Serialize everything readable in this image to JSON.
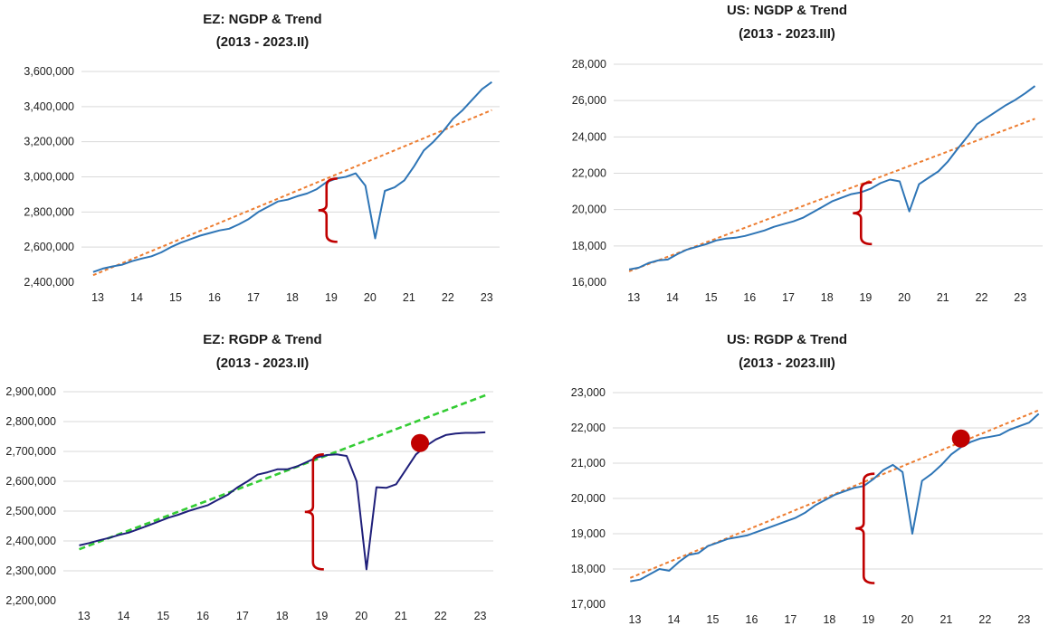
{
  "chart_data": [
    {
      "id": "ez-ngdp",
      "type": "line",
      "title": "EZ: NGDP & Trend",
      "subtitle": "(2013 - 2023.II)",
      "xlabel": "",
      "ylabel": "",
      "x_ticks": [
        "13",
        "14",
        "15",
        "16",
        "17",
        "18",
        "19",
        "20",
        "21",
        "22",
        "23"
      ],
      "y_ticks": [
        "2,400,000",
        "2,600,000",
        "2,800,000",
        "3,000,000",
        "3,200,000",
        "3,400,000",
        "3,600,000"
      ],
      "ylim": [
        2400000,
        3600000
      ],
      "grid": true,
      "series": [
        {
          "name": "NGDP",
          "color": "#2e75b6",
          "style": "solid",
          "x": [
            2013.0,
            2013.25,
            2013.5,
            2013.75,
            2014.0,
            2014.25,
            2014.5,
            2014.75,
            2015.0,
            2015.25,
            2015.5,
            2015.75,
            2016.0,
            2016.25,
            2016.5,
            2016.75,
            2017.0,
            2017.25,
            2017.5,
            2017.75,
            2018.0,
            2018.25,
            2018.5,
            2018.75,
            2019.0,
            2019.25,
            2019.5,
            2019.75,
            2020.0,
            2020.25,
            2020.5,
            2020.75,
            2021.0,
            2021.25,
            2021.5,
            2021.75,
            2022.0,
            2022.25,
            2022.5,
            2022.75,
            2023.0,
            2023.25
          ],
          "y": [
            2458000,
            2478000,
            2490000,
            2500000,
            2520000,
            2535000,
            2548000,
            2570000,
            2600000,
            2625000,
            2645000,
            2665000,
            2680000,
            2695000,
            2705000,
            2730000,
            2760000,
            2800000,
            2830000,
            2860000,
            2870000,
            2890000,
            2905000,
            2930000,
            2970000,
            2990000,
            3000000,
            3020000,
            2950000,
            2650000,
            2920000,
            2940000,
            2980000,
            3060000,
            3150000,
            3200000,
            3260000,
            3330000,
            3380000,
            3440000,
            3500000,
            3540000
          ]
        },
        {
          "name": "Trend",
          "color": "#ed7d31",
          "style": "dashed",
          "x": [
            2013.0,
            2023.25
          ],
          "y": [
            2440000,
            3380000
          ]
        }
      ],
      "annotations": [
        {
          "type": "brace",
          "x": 2019.0,
          "y_from": 2630000,
          "y_to": 2990000
        }
      ]
    },
    {
      "id": "us-ngdp",
      "type": "line",
      "title": "US: NGDP & Trend",
      "subtitle": "(2013 - 2023.III)",
      "xlabel": "",
      "ylabel": "",
      "x_ticks": [
        "13",
        "14",
        "15",
        "16",
        "17",
        "18",
        "19",
        "20",
        "21",
        "22",
        "23"
      ],
      "y_ticks": [
        "16,000",
        "18,000",
        "20,000",
        "22,000",
        "24,000",
        "26,000",
        "28,000"
      ],
      "ylim": [
        16000,
        28000
      ],
      "grid": true,
      "series": [
        {
          "name": "NGDP",
          "color": "#2e75b6",
          "style": "solid",
          "x": [
            2013.0,
            2013.25,
            2013.5,
            2013.75,
            2014.0,
            2014.25,
            2014.5,
            2014.75,
            2015.0,
            2015.25,
            2015.5,
            2015.75,
            2016.0,
            2016.25,
            2016.5,
            2016.75,
            2017.0,
            2017.25,
            2017.5,
            2017.75,
            2018.0,
            2018.25,
            2018.5,
            2018.75,
            2019.0,
            2019.25,
            2019.5,
            2019.75,
            2020.0,
            2020.25,
            2020.5,
            2020.75,
            2021.0,
            2021.25,
            2021.5,
            2021.75,
            2022.0,
            2022.25,
            2022.5,
            2022.75,
            2023.0,
            2023.25,
            2023.5
          ],
          "y": [
            16700,
            16800,
            17050,
            17200,
            17250,
            17550,
            17800,
            17950,
            18100,
            18300,
            18400,
            18450,
            18550,
            18700,
            18850,
            19050,
            19200,
            19350,
            19550,
            19850,
            20150,
            20450,
            20650,
            20850,
            20950,
            21150,
            21450,
            21650,
            21550,
            19900,
            21400,
            21750,
            22100,
            22650,
            23350,
            24000,
            24700,
            25050,
            25400,
            25750,
            26050,
            26400,
            26800
          ]
        },
        {
          "name": "Trend",
          "color": "#ed7d31",
          "style": "dashed",
          "x": [
            2013.0,
            2023.5
          ],
          "y": [
            16600,
            25000
          ]
        }
      ],
      "annotations": [
        {
          "type": "brace",
          "x": 2019.0,
          "y_from": 18100,
          "y_to": 21500
        }
      ]
    },
    {
      "id": "ez-rgdp",
      "type": "line",
      "title": "EZ: RGDP & Trend",
      "subtitle": "(2013 - 2023.II)",
      "xlabel": "",
      "ylabel": "",
      "x_ticks": [
        "13",
        "14",
        "15",
        "16",
        "17",
        "18",
        "19",
        "20",
        "21",
        "22",
        "23"
      ],
      "y_ticks": [
        "2,200,000",
        "2,300,000",
        "2,400,000",
        "2,500,000",
        "2,600,000",
        "2,700,000",
        "2,800,000",
        "2,900,000"
      ],
      "ylim": [
        2200000,
        2900000
      ],
      "grid": true,
      "series": [
        {
          "name": "RGDP",
          "color": "#1f1f7a",
          "style": "solid",
          "x": [
            2013.0,
            2013.25,
            2013.5,
            2013.75,
            2014.0,
            2014.25,
            2014.5,
            2014.75,
            2015.0,
            2015.25,
            2015.5,
            2015.75,
            2016.0,
            2016.25,
            2016.5,
            2016.75,
            2017.0,
            2017.25,
            2017.5,
            2017.75,
            2018.0,
            2018.25,
            2018.5,
            2018.75,
            2019.0,
            2019.25,
            2019.5,
            2019.75,
            2020.0,
            2020.25,
            2020.5,
            2020.75,
            2021.0,
            2021.25,
            2021.5,
            2021.75,
            2022.0,
            2022.25,
            2022.5,
            2022.75,
            2023.0,
            2023.25
          ],
          "y": [
            2385000,
            2393000,
            2402000,
            2410000,
            2420000,
            2428000,
            2440000,
            2452000,
            2465000,
            2478000,
            2488000,
            2500000,
            2510000,
            2520000,
            2538000,
            2555000,
            2580000,
            2600000,
            2622000,
            2630000,
            2640000,
            2640000,
            2650000,
            2665000,
            2680000,
            2688000,
            2690000,
            2685000,
            2600000,
            2305000,
            2580000,
            2578000,
            2590000,
            2640000,
            2690000,
            2718000,
            2740000,
            2755000,
            2760000,
            2762000,
            2762000,
            2764000
          ]
        },
        {
          "name": "Trend",
          "color": "#33cc33",
          "style": "dashed",
          "x": [
            2013.0,
            2023.25
          ],
          "y": [
            2372000,
            2888000
          ]
        }
      ],
      "annotations": [
        {
          "type": "brace",
          "x": 2018.9,
          "y_from": 2305000,
          "y_to": 2690000
        },
        {
          "type": "marker",
          "x": 2021.6,
          "y": 2728000,
          "color": "#c00000"
        }
      ]
    },
    {
      "id": "us-rgdp",
      "type": "line",
      "title": "US: RGDP & Trend",
      "subtitle": "(2013 - 2023.III)",
      "xlabel": "",
      "ylabel": "",
      "x_ticks": [
        "13",
        "14",
        "15",
        "16",
        "17",
        "18",
        "19",
        "20",
        "21",
        "22",
        "23"
      ],
      "y_ticks": [
        "17,000",
        "18,000",
        "19,000",
        "20,000",
        "21,000",
        "22,000",
        "23,000"
      ],
      "ylim": [
        17000,
        23000
      ],
      "grid": true,
      "series": [
        {
          "name": "RGDP",
          "color": "#2e75b6",
          "style": "solid",
          "x": [
            2013.0,
            2013.25,
            2013.5,
            2013.75,
            2014.0,
            2014.25,
            2014.5,
            2014.75,
            2015.0,
            2015.25,
            2015.5,
            2015.75,
            2016.0,
            2016.25,
            2016.5,
            2016.75,
            2017.0,
            2017.25,
            2017.5,
            2017.75,
            2018.0,
            2018.25,
            2018.5,
            2018.75,
            2019.0,
            2019.25,
            2019.5,
            2019.75,
            2020.0,
            2020.25,
            2020.5,
            2020.75,
            2021.0,
            2021.25,
            2021.5,
            2021.75,
            2022.0,
            2022.25,
            2022.5,
            2022.75,
            2023.0,
            2023.25,
            2023.5
          ],
          "y": [
            17650,
            17700,
            17850,
            18000,
            17950,
            18200,
            18400,
            18450,
            18650,
            18750,
            18850,
            18900,
            18950,
            19050,
            19150,
            19250,
            19350,
            19450,
            19600,
            19800,
            19950,
            20100,
            20200,
            20300,
            20350,
            20550,
            20800,
            20950,
            20750,
            19000,
            20500,
            20700,
            20950,
            21250,
            21450,
            21600,
            21700,
            21750,
            21800,
            21950,
            22050,
            22150,
            22400
          ]
        },
        {
          "name": "Trend",
          "color": "#ed7d31",
          "style": "dashed",
          "x": [
            2013.0,
            2023.5
          ],
          "y": [
            17750,
            22500
          ]
        }
      ],
      "annotations": [
        {
          "type": "brace",
          "x": 2019.0,
          "y_from": 17600,
          "y_to": 20700
        },
        {
          "type": "marker",
          "x": 2021.5,
          "y": 21700,
          "color": "#c00000"
        }
      ]
    }
  ]
}
